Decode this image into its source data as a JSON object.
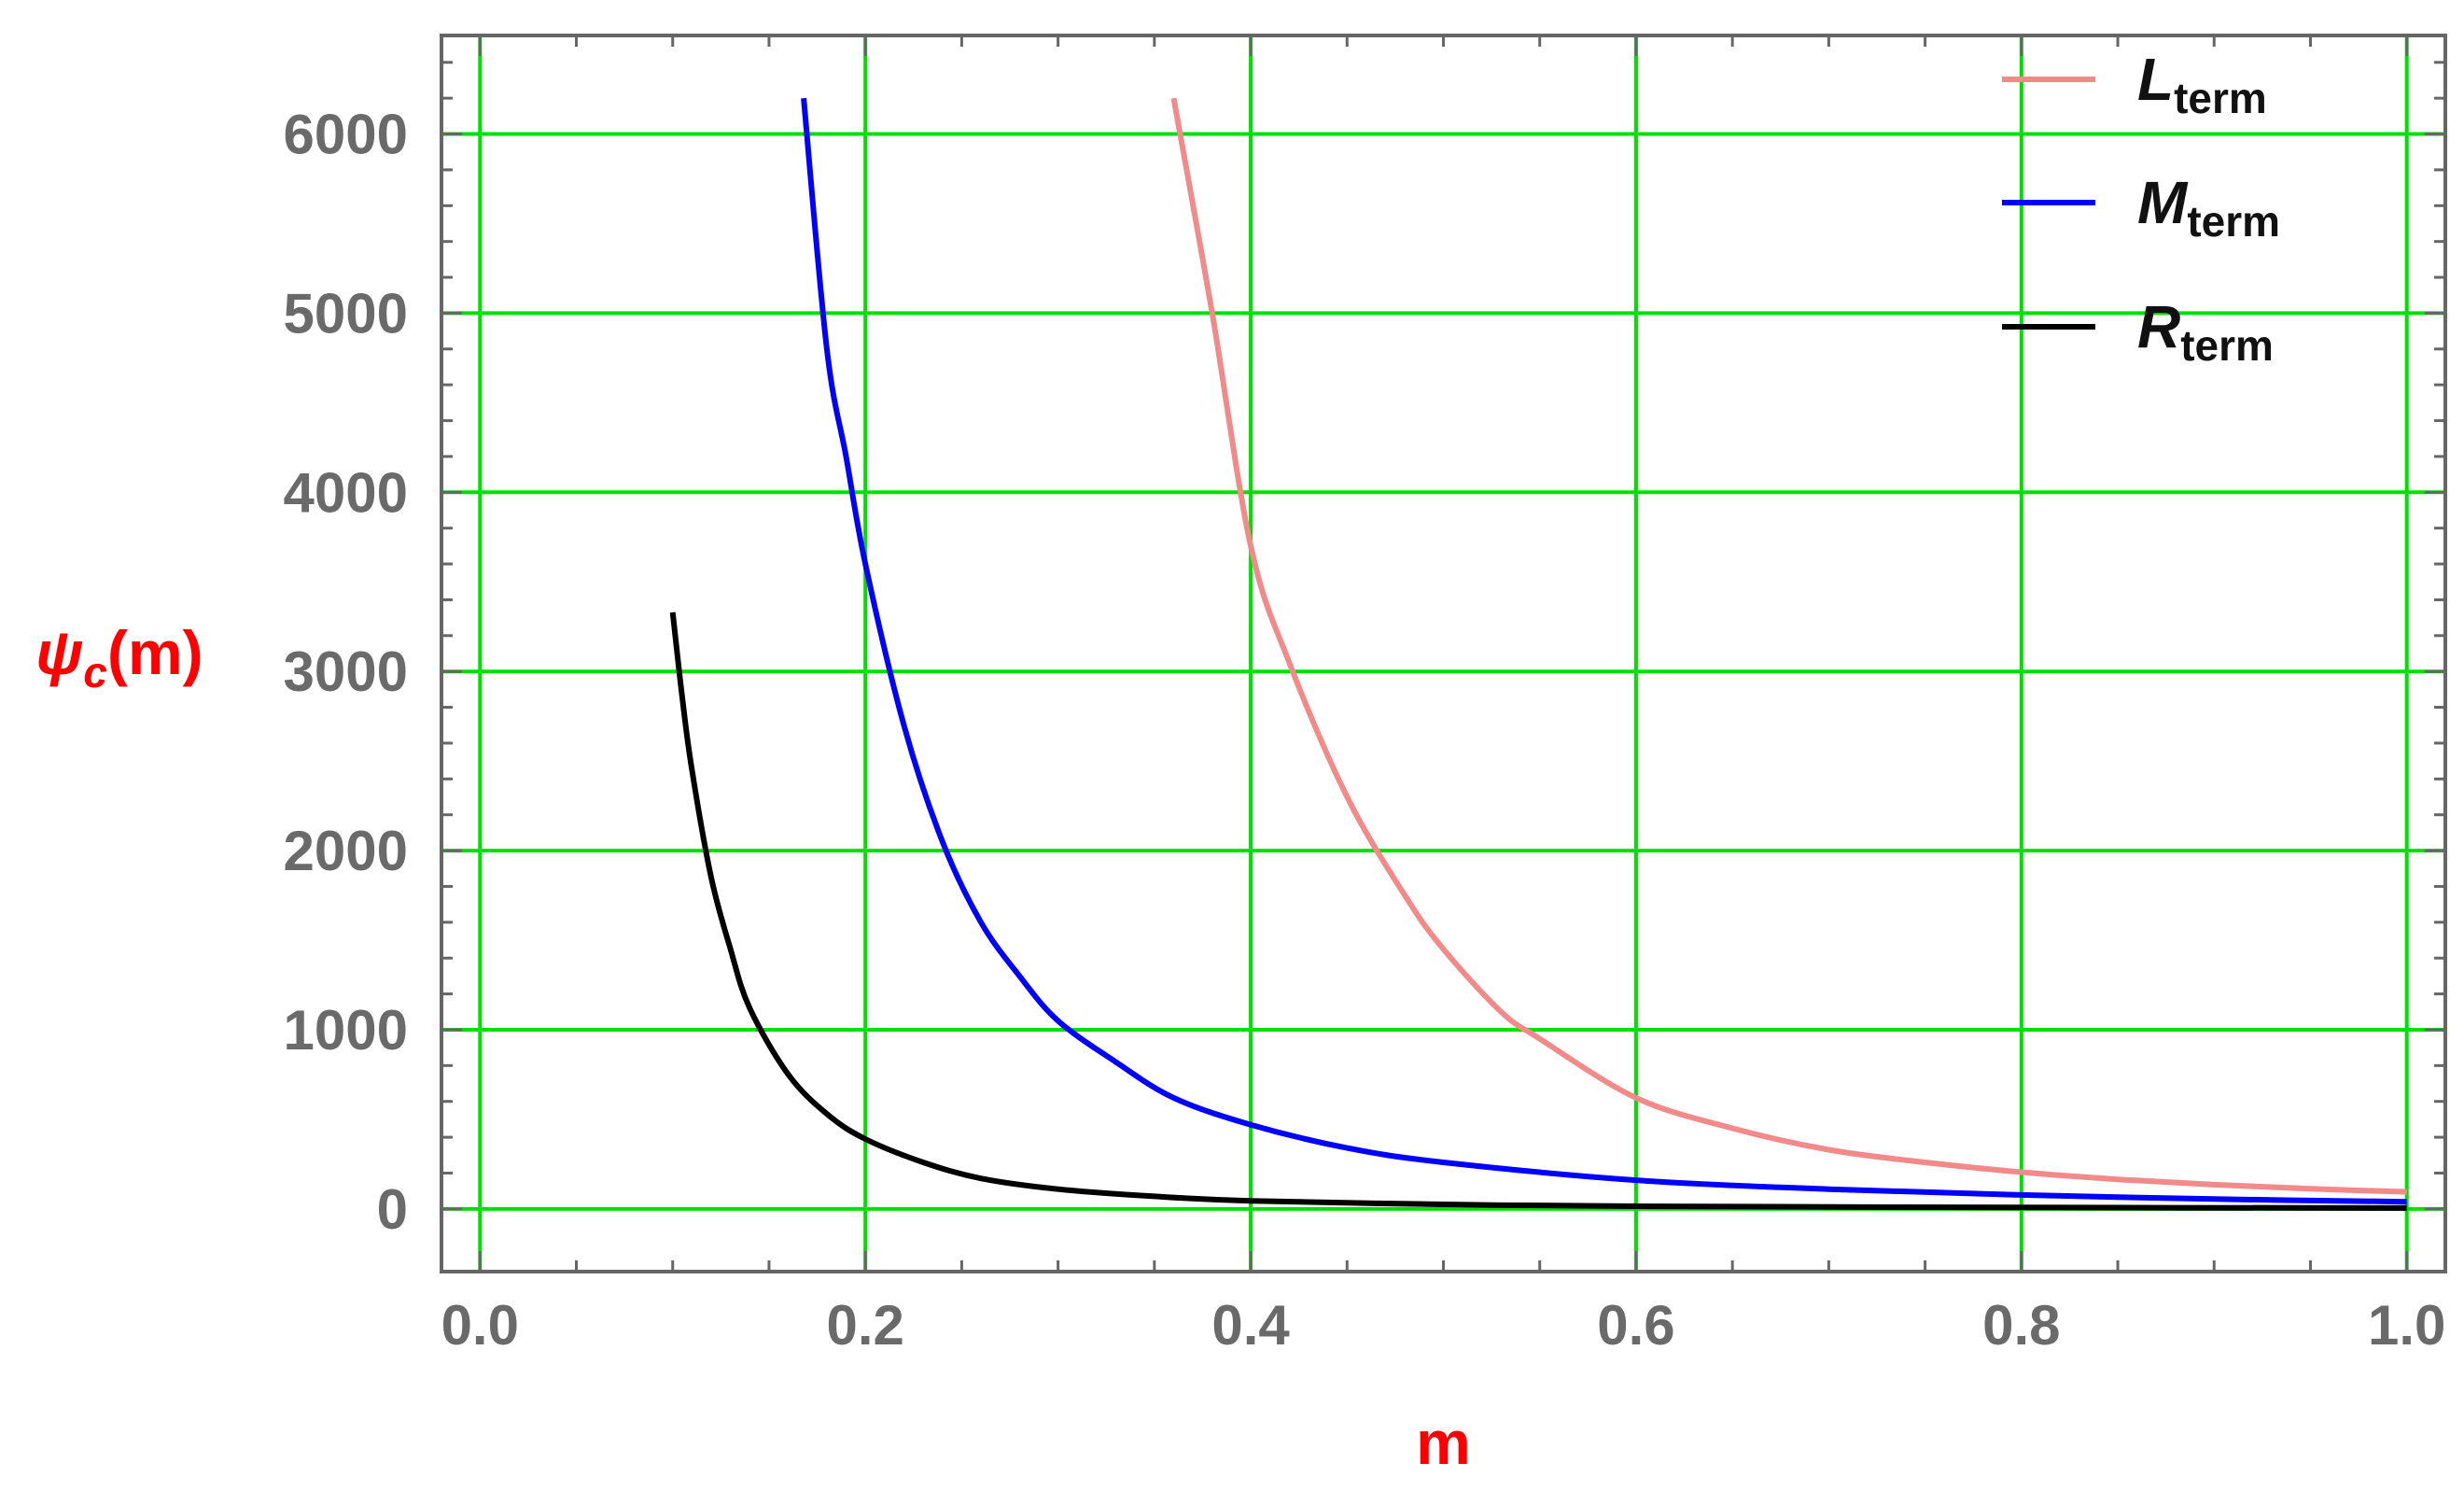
{
  "chart_data": {
    "type": "line",
    "xlabel": "m",
    "ylabel": {
      "symbol": "ψ",
      "subscript": "c",
      "suffix": "(m)"
    },
    "xlim": [
      -0.02,
      1.02
    ],
    "ylim": [
      -350,
      6550
    ],
    "x_ticks": [
      0.0,
      0.2,
      0.4,
      0.6,
      0.8,
      1.0
    ],
    "x_tick_labels": [
      "0.0",
      "0.2",
      "0.4",
      "0.6",
      "0.8",
      "1.0"
    ],
    "y_ticks": [
      0,
      1000,
      2000,
      3000,
      4000,
      5000,
      6000
    ],
    "y_tick_labels": [
      "0",
      "1000",
      "2000",
      "3000",
      "4000",
      "5000",
      "6000"
    ],
    "grid": true,
    "legend_position": "top-right",
    "series": [
      {
        "name_main": "L",
        "name_sub": "term",
        "color": "#f28a8a",
        "x": [
          0.36,
          0.38,
          0.4,
          0.42,
          0.45,
          0.48,
          0.5,
          0.53,
          0.55,
          0.6,
          0.65,
          0.7,
          0.75,
          0.8,
          0.85,
          0.9,
          0.95,
          1.0
        ],
        "y": [
          6200,
          5000,
          3700,
          3050,
          2300,
          1750,
          1450,
          1100,
          950,
          620,
          450,
          330,
          260,
          205,
          165,
          135,
          112,
          95
        ]
      },
      {
        "name_main": "M",
        "name_sub": "term",
        "color": "#0000ff",
        "x": [
          0.168,
          0.18,
          0.19,
          0.2,
          0.22,
          0.24,
          0.26,
          0.28,
          0.3,
          0.33,
          0.36,
          0.4,
          0.45,
          0.5,
          0.6,
          0.7,
          0.8,
          0.9,
          1.0
        ],
        "y": [
          6200,
          4800,
          4200,
          3600,
          2700,
          2050,
          1600,
          1300,
          1050,
          820,
          620,
          470,
          340,
          260,
          160,
          110,
          78,
          55,
          40
        ]
      },
      {
        "name_main": "R",
        "name_sub": "term",
        "color": "#000000",
        "x": [
          0.1,
          0.105,
          0.11,
          0.12,
          0.13,
          0.14,
          0.16,
          0.18,
          0.2,
          0.23,
          0.26,
          0.3,
          0.35,
          0.4,
          0.5,
          0.6,
          0.8,
          1.0
        ],
        "y": [
          3330,
          2850,
          2450,
          1850,
          1450,
          1120,
          750,
          530,
          390,
          260,
          170,
          110,
          70,
          45,
          25,
          15,
          8,
          5
        ]
      }
    ]
  },
  "colors": {
    "grid": "#00e000",
    "frame": "#666666",
    "axis_title": "#ff0000"
  }
}
